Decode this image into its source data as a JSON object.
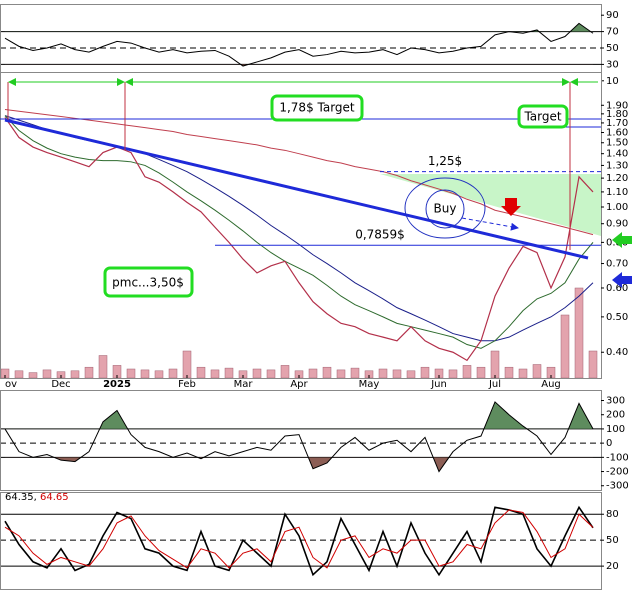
{
  "chart_data": [
    {
      "type": "line",
      "ylim": [
        0,
        100
      ],
      "yticks": [
        90,
        70,
        50,
        30,
        10
      ],
      "levels": [
        70,
        30
      ],
      "midline": 50,
      "fill_colors": [
        "#5e8c5e",
        "#8c5e55"
      ],
      "series": [
        {
          "color": "#000000",
          "values": [
            62,
            52,
            47,
            50,
            55,
            48,
            45,
            52,
            58,
            56,
            50,
            45,
            48,
            44,
            46,
            47,
            40,
            28,
            33,
            38,
            45,
            48,
            40,
            42,
            46,
            44,
            45,
            48,
            42,
            50,
            48,
            44,
            46,
            50,
            52,
            66,
            70,
            68,
            72,
            58,
            64,
            80,
            68
          ]
        }
      ]
    },
    {
      "type": "line",
      "log": true,
      "ylim": [
        0.34,
        2.3
      ],
      "yticks": [
        {
          "value": 1.9,
          "label": "1.90"
        },
        {
          "value": 1.8,
          "label": "1.80"
        },
        {
          "value": 1.7,
          "label": "1.70"
        },
        {
          "value": 1.6,
          "label": "1.60"
        },
        {
          "value": 1.5,
          "label": "1.50"
        },
        {
          "value": 1.4,
          "label": "1.40"
        },
        {
          "value": 1.3,
          "label": "1.30"
        },
        {
          "value": 1.2,
          "label": "1.20"
        },
        {
          "value": 1.1,
          "label": "1.10"
        },
        {
          "value": 1.0,
          "label": "1.00"
        },
        {
          "value": 0.9,
          "label": "0.90"
        },
        {
          "value": 0.8,
          "label": "0.80"
        },
        {
          "value": 0.7,
          "label": "0.70"
        },
        {
          "value": 0.6,
          "label": "0.60"
        },
        {
          "value": 0.5,
          "label": "0.50"
        },
        {
          "value": 0.4,
          "label": "0.40"
        }
      ],
      "categories": [
        "ov",
        null,
        null,
        null,
        "Dec",
        null,
        null,
        null,
        "2025",
        null,
        null,
        null,
        null,
        "Feb",
        null,
        null,
        null,
        "Mar",
        null,
        null,
        null,
        "Apr",
        null,
        null,
        null,
        null,
        "May",
        null,
        null,
        null,
        null,
        "Jun",
        null,
        null,
        null,
        "Jul",
        null,
        null,
        null,
        "Aug",
        null,
        null,
        null
      ],
      "volume": {
        "color": "#e3a3ad",
        "lim": [
          0,
          100
        ],
        "values": [
          10,
          8,
          6,
          9,
          7,
          8,
          12,
          25,
          14,
          10,
          9,
          8,
          10,
          30,
          12,
          9,
          11,
          8,
          10,
          9,
          14,
          8,
          10,
          12,
          9,
          11,
          8,
          10,
          9,
          8,
          12,
          10,
          9,
          14,
          12,
          30,
          12,
          10,
          15,
          12,
          70,
          100,
          30
        ]
      },
      "series": [
        {
          "color": "#c0404f",
          "width": 1,
          "values": [
            1.85,
            1.83,
            1.81,
            1.79,
            1.77,
            1.75,
            1.73,
            1.71,
            1.69,
            1.67,
            1.65,
            1.63,
            1.61,
            1.58,
            1.56,
            1.54,
            1.52,
            1.5,
            1.48,
            1.45,
            1.43,
            1.4,
            1.37,
            1.34,
            1.32,
            1.29,
            1.27,
            1.25,
            1.22,
            1.18,
            1.15,
            1.12,
            1.09,
            1.05,
            1.02,
            0.98,
            0.96,
            0.94,
            0.92,
            0.9,
            0.88,
            0.86,
            0.84
          ]
        },
        {
          "color": "#1a1f8a",
          "width": 1,
          "values": [
            1.78,
            1.73,
            1.68,
            1.63,
            1.59,
            1.55,
            1.52,
            1.49,
            1.47,
            1.44,
            1.4,
            1.35,
            1.3,
            1.25,
            1.19,
            1.13,
            1.07,
            1.01,
            0.95,
            0.89,
            0.84,
            0.79,
            0.74,
            0.7,
            0.66,
            0.62,
            0.59,
            0.56,
            0.53,
            0.51,
            0.49,
            0.47,
            0.45,
            0.44,
            0.43,
            0.43,
            0.44,
            0.46,
            0.48,
            0.5,
            0.53,
            0.57,
            0.62
          ]
        },
        {
          "color": "#2e6b2e",
          "width": 1,
          "values": [
            1.78,
            1.62,
            1.52,
            1.45,
            1.4,
            1.37,
            1.35,
            1.34,
            1.34,
            1.33,
            1.3,
            1.24,
            1.17,
            1.1,
            1.04,
            0.98,
            0.92,
            0.86,
            0.8,
            0.75,
            0.71,
            0.68,
            0.65,
            0.61,
            0.57,
            0.54,
            0.52,
            0.5,
            0.48,
            0.47,
            0.46,
            0.45,
            0.44,
            0.42,
            0.41,
            0.43,
            0.47,
            0.52,
            0.56,
            0.58,
            0.62,
            0.72,
            0.8
          ]
        },
        {
          "color": "#b3304a",
          "width": 1.2,
          "values": [
            1.76,
            1.55,
            1.46,
            1.41,
            1.37,
            1.33,
            1.29,
            1.41,
            1.46,
            1.41,
            1.21,
            1.17,
            1.1,
            1.03,
            0.97,
            0.88,
            0.8,
            0.72,
            0.66,
            0.69,
            0.71,
            0.62,
            0.55,
            0.51,
            0.48,
            0.47,
            0.45,
            0.44,
            0.43,
            0.47,
            0.43,
            0.41,
            0.4,
            0.38,
            0.43,
            0.57,
            0.68,
            0.78,
            0.75,
            0.6,
            0.73,
            1.21,
            1.1
          ]
        }
      ],
      "annotations": [
        {
          "text": "1,25$",
          "value": 1.25
        },
        {
          "text": "0,7859$",
          "value": 0.7859
        }
      ],
      "notes": [
        "1,78$ Target",
        "Target",
        "pmc...3,50$",
        "Buy"
      ]
    },
    {
      "type": "line",
      "ylim": [
        -330,
        360
      ],
      "yticks": [
        300,
        200,
        100,
        0,
        -100,
        -200,
        -300
      ],
      "levels": [
        100,
        -100
      ],
      "midline": 0,
      "fill_colors": [
        "#5e8c5e",
        "#8c5e55"
      ],
      "series": [
        {
          "color": "#000000",
          "values": [
            100,
            -60,
            -100,
            -80,
            -120,
            -130,
            -60,
            150,
            230,
            60,
            -30,
            -60,
            -100,
            -70,
            -110,
            -60,
            -90,
            -60,
            -30,
            -50,
            50,
            60,
            -180,
            -140,
            -30,
            40,
            -50,
            0,
            20,
            -60,
            40,
            -200,
            -60,
            20,
            50,
            290,
            200,
            120,
            50,
            -80,
            40,
            280,
            100
          ]
        }
      ]
    },
    {
      "type": "line",
      "ylim": [
        -3,
        93
      ],
      "yticks": [
        80,
        50,
        20
      ],
      "levels": [
        80,
        20
      ],
      "midline": 50,
      "series": [
        {
          "color": "#000000",
          "width": 1.6,
          "last": 64.35,
          "values": [
            72,
            45,
            25,
            18,
            40,
            15,
            22,
            55,
            82,
            75,
            40,
            35,
            20,
            15,
            60,
            20,
            15,
            50,
            35,
            20,
            80,
            55,
            10,
            25,
            75,
            45,
            15,
            60,
            20,
            70,
            35,
            10,
            35,
            60,
            25,
            88,
            85,
            80,
            40,
            20,
            55,
            88,
            64.35
          ]
        },
        {
          "color": "#d00000",
          "width": 1,
          "last": 64.65,
          "values": [
            65,
            55,
            35,
            22,
            30,
            25,
            20,
            40,
            70,
            78,
            55,
            38,
            28,
            18,
            40,
            35,
            18,
            35,
            40,
            25,
            60,
            65,
            30,
            18,
            50,
            55,
            30,
            40,
            35,
            50,
            50,
            20,
            25,
            45,
            40,
            70,
            85,
            82,
            60,
            30,
            40,
            80,
            64.65
          ]
        }
      ]
    }
  ]
}
